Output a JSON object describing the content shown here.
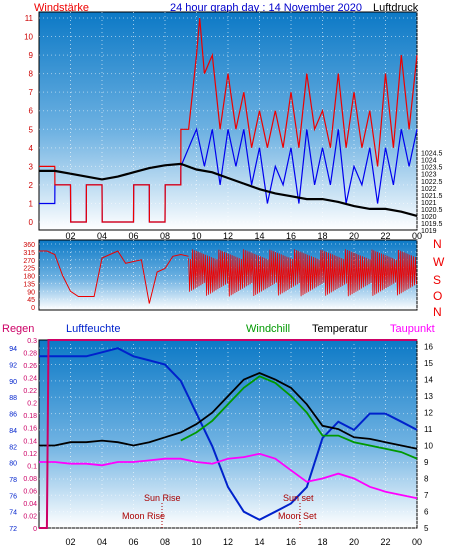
{
  "header": {
    "left_label": "Windstärke",
    "title": "24 hour graph day : 14 November 2020",
    "right_label": "Luftdruck"
  },
  "colors": {
    "gust_red": "#ee0000",
    "wind_blue": "#0000ee",
    "pressure_black": "#000000",
    "direction_red": "#ee0000",
    "humidity_blue": "#0022cc",
    "windchill_green": "#009900",
    "temperature_black": "#000000",
    "dewpoint_magenta": "#ff00ff",
    "rain_magenta": "#cc0066",
    "sun_moon_text": "#aa0000",
    "panel_sky_top": "#0c79c6",
    "panel_sky_bottom": "#ffffff"
  },
  "x_axis": {
    "hours": [
      "02",
      "04",
      "06",
      "08",
      "10",
      "12",
      "14",
      "16",
      "18",
      "20",
      "22",
      "00"
    ]
  },
  "panel_labels": {
    "regen": "Regen",
    "luftfeuchte": "Luftfeuchte",
    "windchill": "Windchill",
    "temperatur": "Temperatur",
    "taupunkt": "Taupunkt",
    "sun_rise": "Sun Rise",
    "sun_set": "Sun set",
    "moon_rise": "Moon Rise",
    "moon_set": "Moon Set"
  },
  "compass": [
    "N",
    "W",
    "S",
    "O",
    "N"
  ],
  "chart_data": [
    {
      "type": "line",
      "title": "24 hour graph day : 14 November 2020",
      "xlabel": "",
      "ylabel_left": "Windstärke",
      "ylabel_right": "Luftdruck",
      "x_ticks": [
        "02",
        "04",
        "06",
        "08",
        "10",
        "12",
        "14",
        "16",
        "18",
        "20",
        "22",
        "00"
      ],
      "xlim_hours": [
        0,
        24
      ],
      "ylim_left": [
        0,
        11
      ],
      "y_ticks_left": [
        0,
        1,
        2,
        3,
        4,
        5,
        6,
        7,
        8,
        9,
        10,
        11
      ],
      "ylim_right": [
        1019,
        1034.5
      ],
      "y_ticks_right": [
        1019,
        1019.5,
        1020,
        1020.5,
        1021,
        1021.5,
        1022,
        1022.5,
        1023,
        1023.5,
        1024,
        1024.5
      ],
      "series": [
        {
          "name": "Windstärke",
          "color": "#0000ee",
          "axis": "left",
          "x": [
            0,
            1,
            1.01,
            2,
            2.01,
            3,
            3.01,
            4,
            4.01,
            6,
            6.01,
            7,
            7.01,
            8,
            8.01,
            9,
            9.01,
            10,
            10.5,
            11,
            11.5,
            12,
            12.5,
            13,
            13.5,
            14,
            14.5,
            15,
            15.5,
            16,
            16.5,
            17,
            17.5,
            18,
            18.5,
            19,
            19.5,
            20,
            20.5,
            21,
            21.5,
            22,
            22.5,
            23,
            23.5,
            24
          ],
          "y": [
            1,
            1,
            2,
            2,
            0,
            0,
            2,
            2,
            0,
            0,
            2,
            2,
            0,
            0,
            2,
            2,
            3,
            5,
            3,
            5,
            2,
            5,
            3,
            5,
            2,
            4,
            1,
            3,
            2,
            4,
            1,
            5,
            2,
            4,
            2,
            5,
            1,
            3,
            2,
            4,
            1,
            4,
            2,
            5,
            3,
            5
          ]
        },
        {
          "name": "Windböen",
          "color": "#ee0000",
          "axis": "left",
          "x": [
            0,
            1,
            1.01,
            2,
            2.01,
            3,
            3.01,
            4,
            4.01,
            6,
            6.01,
            7,
            7.01,
            8,
            8.01,
            9,
            9.01,
            9.5,
            10,
            10.2,
            10.5,
            11,
            11.5,
            12,
            12.5,
            13,
            13.5,
            14,
            14.5,
            15,
            15.5,
            16,
            16.5,
            17,
            17.5,
            18,
            18.5,
            19,
            19.5,
            20,
            20.5,
            21,
            21.5,
            22,
            22.5,
            23,
            23.5,
            24
          ],
          "y": [
            3,
            3,
            2,
            2,
            0,
            0,
            2,
            2,
            0,
            0,
            2,
            2,
            0,
            0,
            2,
            2,
            5,
            5,
            9,
            11,
            8,
            9,
            5,
            8,
            5,
            7,
            4,
            6,
            4,
            6,
            4,
            7,
            4,
            8,
            5,
            6,
            4,
            8,
            4,
            7,
            4,
            6,
            3,
            8,
            4,
            9,
            5,
            9
          ]
        },
        {
          "name": "Luftdruck",
          "color": "#000000",
          "axis": "right",
          "x": [
            0,
            1,
            2,
            3,
            4,
            5,
            6,
            7,
            8,
            9,
            10,
            11,
            12,
            13,
            14,
            15,
            16,
            17,
            18,
            19,
            20,
            21,
            22,
            23,
            24
          ],
          "y": [
            1023.2,
            1023.2,
            1023.0,
            1022.8,
            1022.6,
            1022.8,
            1023.1,
            1023.4,
            1023.6,
            1023.7,
            1023.3,
            1023.1,
            1022.7,
            1022.3,
            1021.9,
            1021.6,
            1021.4,
            1021.2,
            1021.2,
            1021.0,
            1020.7,
            1020.5,
            1020.5,
            1020.3,
            1020.0
          ]
        }
      ]
    },
    {
      "type": "line",
      "title": "",
      "ylabel_right": "N W S O N",
      "xlim_hours": [
        0,
        24
      ],
      "ylim": [
        0,
        360
      ],
      "y_ticks": [
        0,
        45,
        90,
        135,
        180,
        225,
        270,
        315,
        360
      ],
      "series": [
        {
          "name": "Windrichtung",
          "color": "#ee0000",
          "x": [
            0,
            0.5,
            1,
            1.5,
            2,
            2.5,
            3,
            3.5,
            4,
            4.5,
            5,
            5.5,
            6,
            6.5,
            7,
            7.5,
            8,
            8.5,
            9,
            9.5,
            10,
            11,
            12,
            13,
            14,
            15,
            16,
            17,
            18,
            19,
            20,
            21,
            22,
            23,
            24
          ],
          "y": [
            320,
            320,
            300,
            180,
            90,
            60,
            60,
            60,
            280,
            300,
            320,
            250,
            260,
            270,
            20,
            200,
            220,
            290,
            300,
            290,
            200,
            200,
            200,
            200,
            200,
            200,
            200,
            200,
            200,
            200,
            200,
            200,
            200,
            200,
            200
          ],
          "range_from_hour": 9.5,
          "range_low": 60,
          "range_high": 330
        }
      ]
    },
    {
      "type": "line",
      "title": "",
      "ylabel_left_outer": "Regen",
      "ylabel_left_inner": "Luftfeuchte",
      "ylabel_right": "Taupunkt",
      "xlim_hours": [
        0,
        24
      ],
      "humidity_ticks": [
        72,
        74,
        76,
        78,
        80,
        82,
        84,
        86,
        88,
        90,
        92,
        94
      ],
      "humidity_range": [
        72,
        95
      ],
      "rain_ticks": [
        0,
        0.02,
        0.04,
        0.06,
        0.08,
        0.1,
        0.12,
        0.14,
        0.16,
        0.18,
        0.2,
        0.22,
        0.24,
        0.26,
        0.28,
        0.3
      ],
      "rain_range": [
        0,
        0.3
      ],
      "temp_ticks": [
        5,
        6,
        7,
        8,
        9,
        10,
        11,
        12,
        13,
        14,
        15,
        16
      ],
      "temp_range": [
        5,
        16.4
      ],
      "series": [
        {
          "name": "Luftfeuchte",
          "color": "#0022cc",
          "axis": "humidity",
          "x": [
            0,
            1,
            2,
            3,
            4,
            5,
            6,
            7,
            8,
            9,
            10,
            11,
            12,
            13,
            14,
            15,
            16,
            17,
            18,
            19,
            20,
            21,
            22,
            23,
            24
          ],
          "y": [
            93,
            93,
            93,
            93,
            93.5,
            94,
            93,
            92.5,
            92,
            90,
            86,
            82,
            77,
            74,
            73,
            74,
            75,
            77,
            83,
            85,
            84,
            86,
            86,
            85,
            84
          ]
        },
        {
          "name": "Temperatur",
          "color": "#000000",
          "axis": "temp",
          "x": [
            0,
            1,
            2,
            3,
            4,
            5,
            6,
            7,
            8,
            9,
            10,
            11,
            12,
            13,
            14,
            15,
            16,
            17,
            18,
            19,
            20,
            21,
            22,
            23,
            24
          ],
          "y": [
            10,
            10,
            10.2,
            10.2,
            10.3,
            10.2,
            10,
            10.2,
            10.5,
            10.8,
            11.3,
            12,
            13,
            14,
            14.4,
            14,
            13.5,
            12.5,
            11.2,
            11,
            10.5,
            10.4,
            10.2,
            10,
            9.8
          ]
        },
        {
          "name": "Windchill",
          "color": "#009900",
          "axis": "temp",
          "x": [
            9,
            10,
            11,
            12,
            13,
            14,
            15,
            16,
            17,
            18,
            19,
            20,
            21,
            22,
            23,
            24
          ],
          "y": [
            10.3,
            10.8,
            11.5,
            12.5,
            13.5,
            14.2,
            13.8,
            13,
            12,
            10.6,
            10.6,
            10.2,
            10,
            9.8,
            9.6,
            9.2
          ]
        },
        {
          "name": "Taupunkt",
          "color": "#ff00ff",
          "axis": "temp",
          "x": [
            0,
            1,
            2,
            3,
            4,
            5,
            6,
            7,
            8,
            9,
            10,
            11,
            12,
            13,
            14,
            15,
            16,
            17,
            18,
            19,
            20,
            21,
            22,
            23,
            24
          ],
          "y": [
            9,
            9,
            8.9,
            8.9,
            8.8,
            9,
            9,
            9.1,
            9.2,
            9.2,
            9,
            8.9,
            9.2,
            9.3,
            9.5,
            9.2,
            8.5,
            7.8,
            8,
            8.3,
            8,
            7.5,
            7.2,
            7,
            6.8
          ]
        },
        {
          "name": "Regen",
          "color": "#cc0066",
          "axis": "rain",
          "x": [
            0,
            0.5,
            0.6,
            24
          ],
          "y": [
            0,
            0,
            0.3,
            0.3
          ]
        }
      ],
      "annotations": [
        {
          "label": "Sun Rise",
          "hour": 7.5
        },
        {
          "label": "Moon Rise",
          "hour": 7.5
        },
        {
          "label": "Sun set",
          "hour": 16.5
        },
        {
          "label": "Moon Set",
          "hour": 16.8
        }
      ]
    }
  ]
}
